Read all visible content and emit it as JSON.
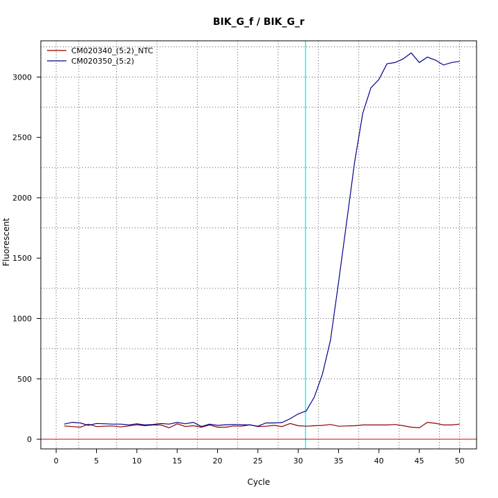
{
  "chart_data": {
    "type": "line",
    "title": "BIK_G_f / BIK_G_r",
    "xlabel": "Cycle",
    "ylabel": "Fluorescent",
    "xlim": [
      -1.9,
      52.1
    ],
    "ylim": [
      -80,
      3300
    ],
    "x_ticks": [
      0,
      5,
      10,
      15,
      20,
      25,
      30,
      35,
      40,
      45,
      50
    ],
    "y_ticks": [
      0,
      500,
      1000,
      1500,
      2000,
      2500,
      3000
    ],
    "x_minor_grid": [
      0,
      2.8,
      7.5,
      12.5,
      17.5,
      22.5,
      27.5,
      32.5,
      37.5,
      42.5,
      47.5,
      50
    ],
    "y_grid": [
      500,
      750,
      1250,
      1750,
      2250,
      2750,
      3250,
      3000,
      2000,
      1000
    ],
    "grid": true,
    "legend_position": "top-left",
    "threshold_cycle": 30.9,
    "threshold_color": "#00ffff",
    "baseline_value": 0,
    "baseline_color": "#cc0000",
    "x": [
      1,
      2,
      3,
      4,
      5,
      6,
      7,
      8,
      9,
      10,
      11,
      12,
      13,
      14,
      15,
      16,
      17,
      18,
      19,
      20,
      21,
      22,
      23,
      24,
      25,
      26,
      27,
      28,
      29,
      30,
      31,
      32,
      33,
      34,
      35,
      36,
      37,
      38,
      39,
      40,
      41,
      42,
      43,
      44,
      45,
      46,
      47,
      48,
      49,
      50
    ],
    "series": [
      {
        "name": "CM020340_(5:2)_NTC",
        "color": "#8b0000",
        "values": [
          110,
          105,
          100,
          125,
          105,
          108,
          110,
          102,
          110,
          120,
          112,
          118,
          118,
          95,
          128,
          105,
          112,
          100,
          118,
          100,
          100,
          110,
          108,
          120,
          105,
          108,
          115,
          105,
          130,
          112,
          108,
          112,
          115,
          122,
          108,
          110,
          112,
          118,
          118,
          118,
          118,
          122,
          112,
          100,
          95,
          140,
          132,
          118,
          118,
          125
        ]
      },
      {
        "name": "CM020350_(5:2)",
        "color": "#00008b",
        "values": [
          125,
          140,
          135,
          115,
          130,
          128,
          125,
          125,
          118,
          128,
          118,
          122,
          130,
          125,
          140,
          128,
          140,
          105,
          125,
          115,
          120,
          122,
          120,
          118,
          108,
          135,
          135,
          138,
          170,
          210,
          235,
          350,
          540,
          820,
          1300,
          1800,
          2300,
          2700,
          2910,
          2980,
          3110,
          3120,
          3150,
          3200,
          3120,
          3165,
          3140,
          3100,
          3120,
          3130
        ]
      }
    ]
  }
}
